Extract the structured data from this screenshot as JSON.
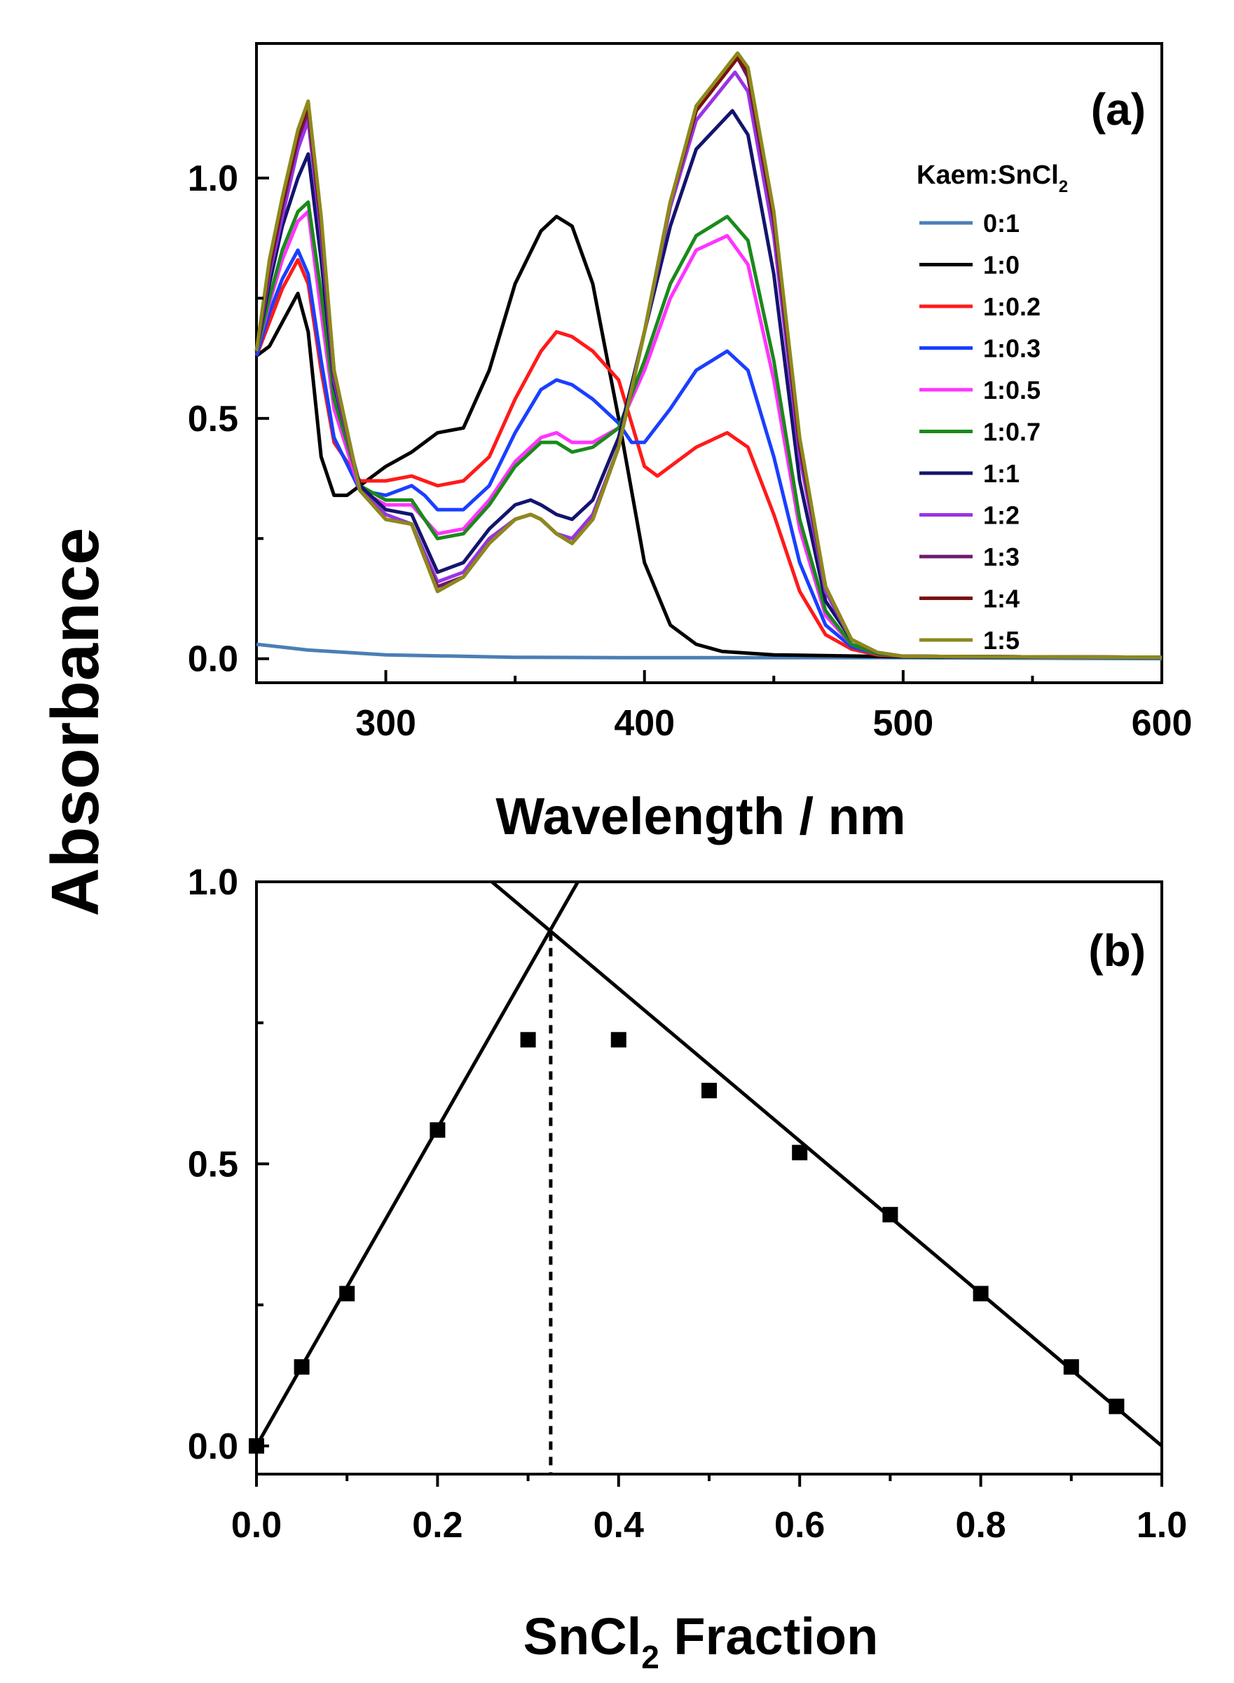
{
  "figure": {
    "shared_ylabel": "Absorbance"
  },
  "chart_data": [
    {
      "panel": "(a)",
      "type": "line",
      "title": "",
      "xlabel": "Wavelength / nm",
      "ylabel": "Absorbance",
      "xlim": [
        250,
        600
      ],
      "ylim": [
        -0.05,
        1.28
      ],
      "xticks": [
        300,
        400,
        500,
        600
      ],
      "xtick_labels": [
        "300",
        "400",
        "500",
        "600"
      ],
      "yticks": [
        0.0,
        0.5,
        1.0
      ],
      "ytick_labels": [
        "0.0",
        "0.5",
        "1.0"
      ],
      "legend_title": "Kaem:SnCl",
      "legend_title_sub": "2",
      "legend_position": "right",
      "grid": false,
      "series": [
        {
          "name": "0:1",
          "color": "#4a7fb5",
          "x": [
            250,
            270,
            300,
            350,
            400,
            450,
            500,
            550,
            600
          ],
          "y": [
            0.03,
            0.018,
            0.008,
            0.003,
            0.002,
            0.002,
            0.002,
            0.001,
            0.0
          ]
        },
        {
          "name": "1:0",
          "color": "#000000",
          "x": [
            250,
            255,
            260,
            266,
            270,
            275,
            280,
            285,
            290,
            300,
            310,
            320,
            330,
            340,
            350,
            360,
            366,
            372,
            380,
            390,
            400,
            410,
            420,
            430,
            450,
            500,
            600
          ],
          "y": [
            0.63,
            0.65,
            0.7,
            0.76,
            0.68,
            0.42,
            0.34,
            0.34,
            0.36,
            0.4,
            0.43,
            0.47,
            0.48,
            0.6,
            0.78,
            0.89,
            0.92,
            0.9,
            0.78,
            0.5,
            0.2,
            0.07,
            0.03,
            0.015,
            0.008,
            0.004,
            0.003
          ]
        },
        {
          "name": "1:0.2",
          "color": "#ff1a1a",
          "x": [
            250,
            255,
            260,
            266,
            270,
            275,
            280,
            290,
            300,
            310,
            315,
            320,
            330,
            340,
            350,
            360,
            366,
            372,
            380,
            390,
            395,
            400,
            405,
            410,
            420,
            432,
            440,
            450,
            460,
            470,
            480,
            490,
            500,
            600
          ],
          "y": [
            0.63,
            0.7,
            0.77,
            0.83,
            0.78,
            0.6,
            0.45,
            0.37,
            0.37,
            0.38,
            0.37,
            0.36,
            0.37,
            0.42,
            0.54,
            0.64,
            0.68,
            0.67,
            0.64,
            0.58,
            0.49,
            0.4,
            0.38,
            0.4,
            0.44,
            0.47,
            0.44,
            0.3,
            0.14,
            0.05,
            0.02,
            0.008,
            0.005,
            0.003
          ]
        },
        {
          "name": "1:0.3",
          "color": "#1a3fff",
          "x": [
            250,
            255,
            260,
            266,
            270,
            275,
            280,
            290,
            300,
            310,
            315,
            320,
            330,
            340,
            350,
            360,
            366,
            372,
            380,
            390,
            395,
            400,
            410,
            420,
            432,
            440,
            450,
            460,
            470,
            480,
            490,
            500,
            600
          ],
          "y": [
            0.63,
            0.72,
            0.79,
            0.85,
            0.8,
            0.62,
            0.46,
            0.35,
            0.34,
            0.36,
            0.34,
            0.31,
            0.31,
            0.36,
            0.47,
            0.56,
            0.58,
            0.57,
            0.54,
            0.49,
            0.45,
            0.45,
            0.52,
            0.6,
            0.64,
            0.6,
            0.42,
            0.2,
            0.07,
            0.025,
            0.01,
            0.005,
            0.003
          ]
        },
        {
          "name": "1:0.5",
          "color": "#ff33ff",
          "x": [
            250,
            255,
            260,
            266,
            270,
            275,
            280,
            290,
            300,
            310,
            315,
            320,
            330,
            340,
            350,
            360,
            366,
            372,
            380,
            390,
            400,
            410,
            420,
            432,
            440,
            450,
            460,
            470,
            480,
            490,
            500,
            600
          ],
          "y": [
            0.64,
            0.74,
            0.83,
            0.91,
            0.93,
            0.72,
            0.52,
            0.35,
            0.32,
            0.32,
            0.29,
            0.26,
            0.27,
            0.33,
            0.41,
            0.46,
            0.47,
            0.45,
            0.45,
            0.48,
            0.6,
            0.75,
            0.85,
            0.88,
            0.82,
            0.58,
            0.27,
            0.09,
            0.03,
            0.01,
            0.005,
            0.003
          ]
        },
        {
          "name": "1:0.7",
          "color": "#1a8a1a",
          "x": [
            250,
            255,
            260,
            266,
            270,
            275,
            280,
            290,
            300,
            310,
            315,
            320,
            330,
            340,
            350,
            360,
            366,
            372,
            380,
            390,
            400,
            410,
            420,
            432,
            440,
            450,
            460,
            470,
            480,
            490,
            500,
            600
          ],
          "y": [
            0.64,
            0.75,
            0.85,
            0.93,
            0.95,
            0.76,
            0.54,
            0.36,
            0.33,
            0.33,
            0.29,
            0.25,
            0.26,
            0.32,
            0.4,
            0.45,
            0.45,
            0.43,
            0.44,
            0.48,
            0.62,
            0.78,
            0.88,
            0.92,
            0.87,
            0.62,
            0.29,
            0.1,
            0.03,
            0.01,
            0.005,
            0.003
          ]
        },
        {
          "name": "1:1",
          "color": "#14146e",
          "x": [
            250,
            255,
            260,
            266,
            270,
            275,
            280,
            290,
            300,
            310,
            315,
            320,
            330,
            340,
            350,
            356,
            360,
            366,
            372,
            380,
            390,
            400,
            410,
            420,
            434,
            440,
            450,
            460,
            470,
            480,
            490,
            500,
            600
          ],
          "y": [
            0.64,
            0.78,
            0.9,
            1.0,
            1.05,
            0.83,
            0.57,
            0.36,
            0.31,
            0.3,
            0.24,
            0.18,
            0.2,
            0.27,
            0.32,
            0.33,
            0.32,
            0.3,
            0.29,
            0.33,
            0.46,
            0.68,
            0.9,
            1.06,
            1.14,
            1.09,
            0.8,
            0.37,
            0.12,
            0.04,
            0.012,
            0.005,
            0.003
          ]
        },
        {
          "name": "1:2",
          "color": "#9a33e6",
          "x": [
            250,
            255,
            260,
            266,
            270,
            275,
            280,
            290,
            300,
            310,
            315,
            320,
            330,
            340,
            350,
            356,
            360,
            366,
            372,
            380,
            390,
            400,
            410,
            420,
            435,
            440,
            450,
            460,
            470,
            480,
            490,
            500,
            600
          ],
          "y": [
            0.64,
            0.8,
            0.92,
            1.06,
            1.12,
            0.88,
            0.58,
            0.35,
            0.3,
            0.28,
            0.22,
            0.16,
            0.18,
            0.25,
            0.29,
            0.3,
            0.29,
            0.26,
            0.25,
            0.3,
            0.44,
            0.68,
            0.94,
            1.12,
            1.22,
            1.18,
            0.88,
            0.42,
            0.14,
            0.04,
            0.013,
            0.005,
            0.003
          ]
        },
        {
          "name": "1:3",
          "color": "#6e1a6e",
          "x": [
            250,
            255,
            260,
            266,
            270,
            275,
            280,
            290,
            300,
            310,
            315,
            320,
            330,
            340,
            350,
            356,
            360,
            366,
            372,
            380,
            390,
            400,
            410,
            420,
            436,
            440,
            450,
            460,
            470,
            480,
            490,
            500,
            600
          ],
          "y": [
            0.64,
            0.81,
            0.94,
            1.08,
            1.14,
            0.9,
            0.59,
            0.35,
            0.29,
            0.28,
            0.21,
            0.15,
            0.17,
            0.24,
            0.29,
            0.3,
            0.29,
            0.26,
            0.24,
            0.29,
            0.44,
            0.68,
            0.95,
            1.14,
            1.25,
            1.21,
            0.91,
            0.44,
            0.15,
            0.04,
            0.013,
            0.005,
            0.003
          ]
        },
        {
          "name": "1:4",
          "color": "#7a1010",
          "x": [
            250,
            255,
            260,
            266,
            270,
            275,
            280,
            290,
            300,
            310,
            315,
            320,
            330,
            340,
            350,
            356,
            360,
            366,
            372,
            380,
            390,
            400,
            410,
            420,
            436,
            440,
            450,
            460,
            470,
            480,
            490,
            500,
            600
          ],
          "y": [
            0.64,
            0.82,
            0.95,
            1.09,
            1.15,
            0.91,
            0.6,
            0.35,
            0.29,
            0.28,
            0.21,
            0.14,
            0.17,
            0.24,
            0.29,
            0.3,
            0.29,
            0.26,
            0.24,
            0.29,
            0.44,
            0.68,
            0.95,
            1.14,
            1.25,
            1.22,
            0.92,
            0.45,
            0.15,
            0.04,
            0.013,
            0.005,
            0.003
          ]
        },
        {
          "name": "1:5",
          "color": "#8c8a1a",
          "x": [
            250,
            255,
            260,
            266,
            270,
            275,
            280,
            290,
            300,
            310,
            315,
            320,
            330,
            340,
            350,
            356,
            360,
            366,
            372,
            380,
            390,
            400,
            410,
            420,
            436,
            440,
            450,
            460,
            470,
            480,
            490,
            500,
            600
          ],
          "y": [
            0.64,
            0.83,
            0.96,
            1.1,
            1.16,
            0.92,
            0.6,
            0.35,
            0.29,
            0.28,
            0.21,
            0.14,
            0.17,
            0.24,
            0.29,
            0.3,
            0.29,
            0.26,
            0.24,
            0.29,
            0.44,
            0.68,
            0.95,
            1.15,
            1.26,
            1.23,
            0.93,
            0.46,
            0.15,
            0.04,
            0.013,
            0.005,
            0.003
          ]
        }
      ]
    },
    {
      "panel": "(b)",
      "type": "scatter",
      "title": "",
      "xlabel": "SnCl",
      "xlabel_sub": "2",
      "xlabel_suffix": " Fraction",
      "ylabel": "Absorbance",
      "xlim": [
        0.0,
        1.0
      ],
      "ylim": [
        -0.05,
        1.0
      ],
      "xticks": [
        0.0,
        0.2,
        0.4,
        0.6,
        0.8,
        1.0
      ],
      "xtick_labels": [
        "0.0",
        "0.2",
        "0.4",
        "0.6",
        "0.8",
        "1.0"
      ],
      "yticks": [
        0.0,
        0.5,
        1.0
      ],
      "ytick_labels": [
        "0.0",
        "0.5",
        "1.0"
      ],
      "grid": false,
      "points": {
        "x": [
          0.0,
          0.05,
          0.1,
          0.2,
          0.3,
          0.4,
          0.5,
          0.6,
          0.7,
          0.8,
          0.9,
          0.95
        ],
        "y": [
          0.0,
          0.14,
          0.27,
          0.56,
          0.72,
          0.72,
          0.63,
          0.52,
          0.41,
          0.27,
          0.14,
          0.07
        ]
      },
      "fit_lines": [
        {
          "name": "rising fit",
          "x": [
            0.0,
            0.355
          ],
          "y": [
            0.0,
            1.0
          ]
        },
        {
          "name": "falling fit",
          "x": [
            0.26,
            1.0
          ],
          "y": [
            1.0,
            0.0
          ]
        }
      ],
      "intersection": {
        "x": 0.325,
        "y": 0.91
      }
    }
  ]
}
